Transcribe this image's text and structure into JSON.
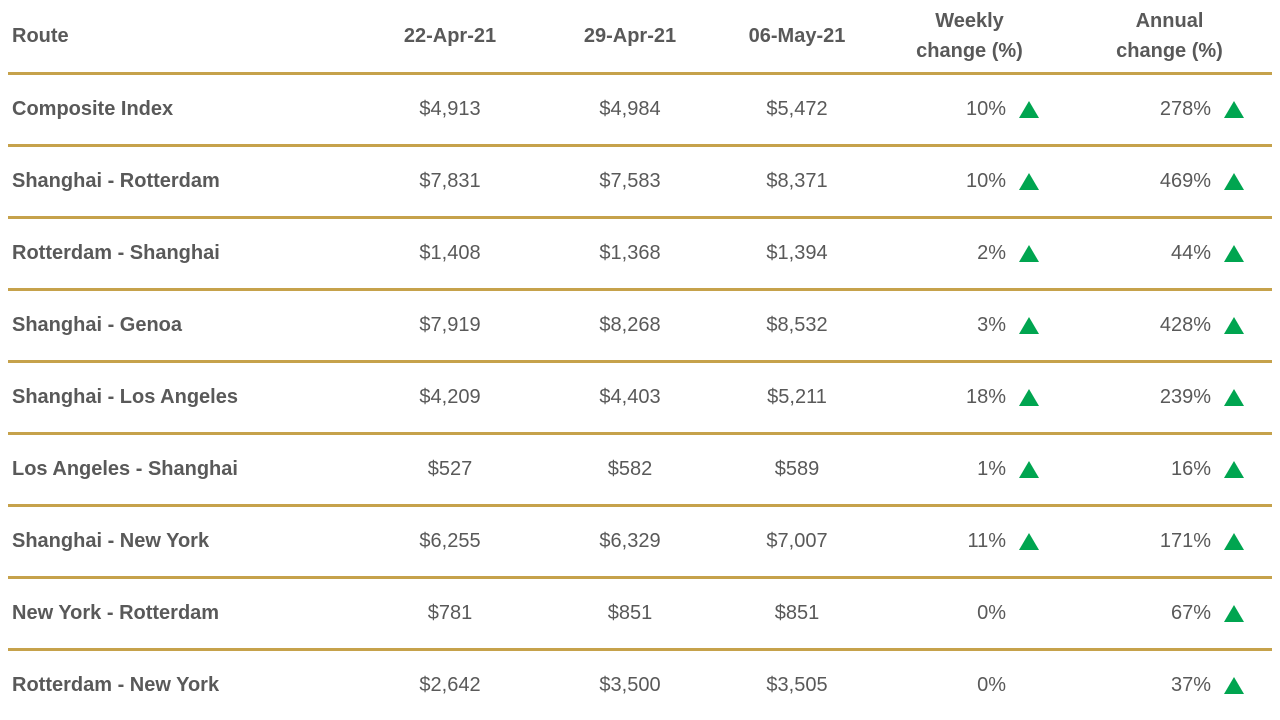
{
  "colors": {
    "accent_line": "#C6A24B",
    "up_green": "#00A550",
    "text_gray": "#595959"
  },
  "table": {
    "header": {
      "route": "Route",
      "date1": "22-Apr-21",
      "date2": "29-Apr-21",
      "date3": "06-May-21",
      "weekly_line1": "Weekly",
      "weekly_line2": "change (%)",
      "annual_line1": "Annual",
      "annual_line2": "change (%)"
    },
    "rows": [
      {
        "route": "Composite Index",
        "date1": "$4,913",
        "date2": "$4,984",
        "date3": "$5,472",
        "weekly": "10%",
        "weekly_up": true,
        "annual": "278%",
        "annual_up": true
      },
      {
        "route": "Shanghai - Rotterdam",
        "date1": "$7,831",
        "date2": "$7,583",
        "date3": "$8,371",
        "weekly": "10%",
        "weekly_up": true,
        "annual": "469%",
        "annual_up": true
      },
      {
        "route": "Rotterdam - Shanghai",
        "date1": "$1,408",
        "date2": "$1,368",
        "date3": "$1,394",
        "weekly": "2%",
        "weekly_up": true,
        "annual": "44%",
        "annual_up": true
      },
      {
        "route": "Shanghai - Genoa",
        "date1": "$7,919",
        "date2": "$8,268",
        "date3": "$8,532",
        "weekly": "3%",
        "weekly_up": true,
        "annual": "428%",
        "annual_up": true
      },
      {
        "route": "Shanghai - Los Angeles",
        "date1": "$4,209",
        "date2": "$4,403",
        "date3": "$5,211",
        "weekly": "18%",
        "weekly_up": true,
        "annual": "239%",
        "annual_up": true
      },
      {
        "route": "Los Angeles - Shanghai",
        "date1": "$527",
        "date2": "$582",
        "date3": "$589",
        "weekly": "1%",
        "weekly_up": true,
        "annual": "16%",
        "annual_up": true
      },
      {
        "route": "Shanghai - New York",
        "date1": "$6,255",
        "date2": "$6,329",
        "date3": "$7,007",
        "weekly": "11%",
        "weekly_up": true,
        "annual": "171%",
        "annual_up": true
      },
      {
        "route": "New York - Rotterdam",
        "date1": "$781",
        "date2": "$851",
        "date3": "$851",
        "weekly": "0%",
        "weekly_up": false,
        "annual": "67%",
        "annual_up": true
      },
      {
        "route": "Rotterdam - New York",
        "date1": "$2,642",
        "date2": "$3,500",
        "date3": "$3,505",
        "weekly": "0%",
        "weekly_up": false,
        "annual": "37%",
        "annual_up": true
      }
    ]
  },
  "chart_data": {
    "type": "table",
    "columns": [
      "Route",
      "22-Apr-21",
      "29-Apr-21",
      "06-May-21",
      "Weekly change (%)",
      "Annual change (%)"
    ],
    "rows": [
      [
        "Composite Index",
        4913,
        4984,
        5472,
        10,
        278
      ],
      [
        "Shanghai - Rotterdam",
        7831,
        7583,
        8371,
        10,
        469
      ],
      [
        "Rotterdam - Shanghai",
        1408,
        1368,
        1394,
        2,
        44
      ],
      [
        "Shanghai - Genoa",
        7919,
        8268,
        8532,
        3,
        428
      ],
      [
        "Shanghai - Los Angeles",
        4209,
        4403,
        5211,
        18,
        239
      ],
      [
        "Los Angeles - Shanghai",
        527,
        582,
        589,
        1,
        16
      ],
      [
        "Shanghai - New York",
        6255,
        6329,
        7007,
        11,
        171
      ],
      [
        "New York - Rotterdam",
        781,
        851,
        851,
        0,
        67
      ],
      [
        "Rotterdam - New York",
        2642,
        3500,
        3505,
        0,
        37
      ]
    ],
    "value_units": "USD",
    "up_indicator": "green triangle shown beside all positive change values; omitted for 0%"
  }
}
